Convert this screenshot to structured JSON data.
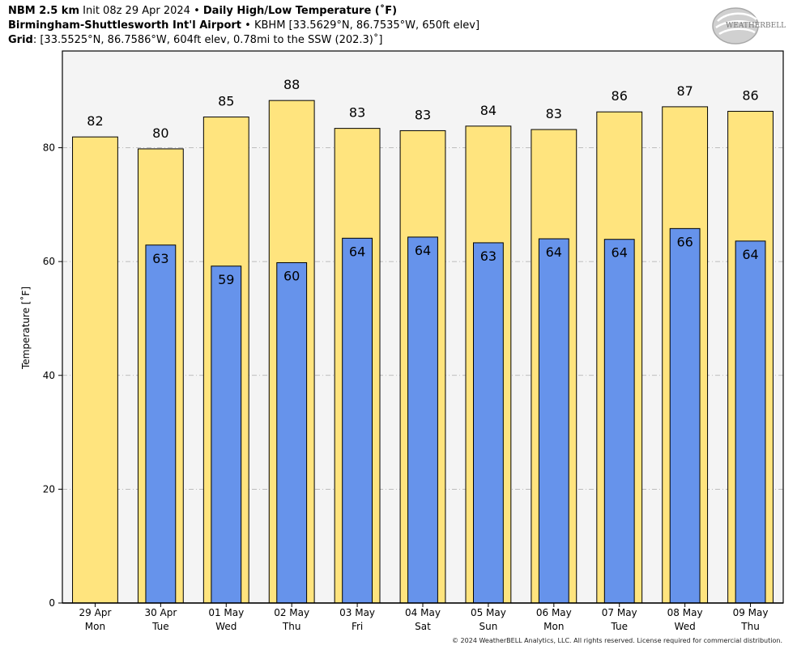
{
  "header": {
    "line1": {
      "model": "NBM 2.5 km",
      "init": "Init 08z 29 Apr 2024",
      "sep": "•",
      "product": "Daily High/Low Temperature (˚F)"
    },
    "line2": {
      "station": "Birmingham-Shuttlesworth Int'l Airport",
      "sep": "•",
      "details": "KBHM [33.5629°N, 86.7535°W, 650ft elev]"
    },
    "line3": {
      "label": "Grid",
      "details": ": [33.5525°N, 86.7586°W, 604ft elev, 0.78mi to the SSW (202.3)˚]"
    }
  },
  "logo": {
    "text": "WEATHERBELL"
  },
  "footer": "© 2024 WeatherBELL Analytics, LLC. All rights reserved. License required for commercial distribution.",
  "colors": {
    "high": "#ffe47e",
    "low": "#6693eb",
    "plot_bg": "#f4f4f4",
    "grid": "#aaaaaa"
  },
  "chart_data": {
    "type": "bar",
    "title": "Daily High/Low Temperature (˚F)",
    "xlabel": "",
    "ylabel": "Temperature [˚F]",
    "ylim": [
      0,
      97
    ],
    "yticks": [
      0,
      20,
      40,
      60,
      80
    ],
    "grid": true,
    "categories": [
      {
        "date": "29 Apr",
        "day": "Mon"
      },
      {
        "date": "30 Apr",
        "day": "Tue"
      },
      {
        "date": "01 May",
        "day": "Wed"
      },
      {
        "date": "02 May",
        "day": "Thu"
      },
      {
        "date": "03 May",
        "day": "Fri"
      },
      {
        "date": "04 May",
        "day": "Sat"
      },
      {
        "date": "05 May",
        "day": "Sun"
      },
      {
        "date": "06 May",
        "day": "Mon"
      },
      {
        "date": "07 May",
        "day": "Tue"
      },
      {
        "date": "08 May",
        "day": "Wed"
      },
      {
        "date": "09 May",
        "day": "Thu"
      }
    ],
    "series": [
      {
        "key": "high",
        "values": [
          81.9,
          79.8,
          85.4,
          88.3,
          83.4,
          83.0,
          83.8,
          83.2,
          86.3,
          87.2,
          86.4
        ],
        "labels": [
          "82",
          "80",
          "85",
          "88",
          "83",
          "83",
          "84",
          "83",
          "86",
          "87",
          "86"
        ]
      },
      {
        "key": "low",
        "values": [
          null,
          62.9,
          59.2,
          59.8,
          64.1,
          64.3,
          63.3,
          64.0,
          63.9,
          65.8,
          63.6
        ],
        "labels": [
          "",
          "63",
          "59",
          "60",
          "64",
          "64",
          "63",
          "64",
          "64",
          "66",
          "64"
        ]
      }
    ]
  }
}
